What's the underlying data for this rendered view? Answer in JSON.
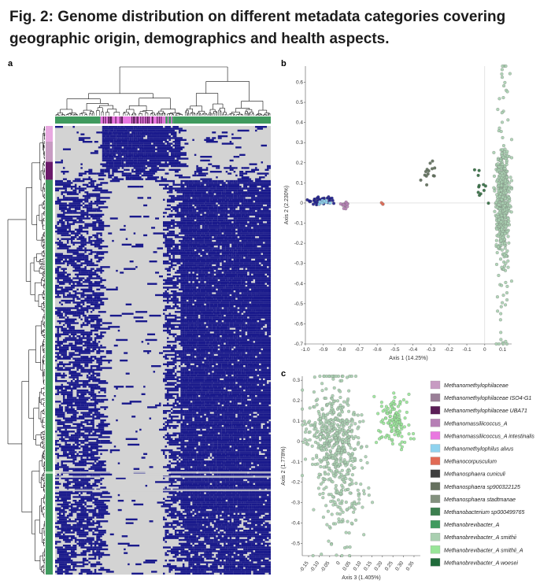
{
  "figure": {
    "title": "Fig. 2: Genome distribution on different metadata categories covering geographic origin, demographics and health aspects.",
    "panel_a": "a",
    "panel_b": "b",
    "panel_c": "c"
  },
  "colors": {
    "heat_present": "#1a1a8c",
    "heat_absent": "#d3d3d3"
  },
  "legend": [
    {
      "label": "Methanomethylophilaceae",
      "color": "#c79bc2"
    },
    {
      "label": "Methanomethylophilaceae ISO4-G1",
      "color": "#9a7f97"
    },
    {
      "label": "Methanomethylophilaceae UBA71",
      "color": "#5a1e56"
    },
    {
      "label": "Methanomassiliicoccus_A",
      "color": "#b67fb5"
    },
    {
      "label": "Methanomassiliicoccus_A intestinalis",
      "color": "#e978e0"
    },
    {
      "label": "Methanomethylophilus alvus",
      "color": "#8fd3ef"
    },
    {
      "label": "Methanocorpusculum",
      "color": "#e16a55"
    },
    {
      "label": "Methanosphaera cuniculi",
      "color": "#3f3f3f"
    },
    {
      "label": "Methanosphaera sp900322125",
      "color": "#66715f"
    },
    {
      "label": "Methanosphaera stadtmanae",
      "color": "#83917e"
    },
    {
      "label": "Methanobacterium sp000499765",
      "color": "#3c7f4f"
    },
    {
      "label": "Methanobrevibacter_A",
      "color": "#3f9a5e"
    },
    {
      "label": "Methanobrevibacter_A smithii",
      "color": "#a9cfb0"
    },
    {
      "label": "Methanobrevibacter_A smithii_A",
      "color": "#98e598"
    },
    {
      "label": "Methanobrevibacter_A woesei",
      "color": "#1f6b3a"
    }
  ],
  "chart_data": [
    {
      "type": "heatmap",
      "title": "",
      "row_color_bar": [
        "#e8a8e0",
        "#c79bc2",
        "#6b1a6b",
        "#3f9a5e"
      ],
      "column_color_bar": [
        "#3f9a5e",
        "#e978e0",
        "#5a1e56",
        "#3f9a5e"
      ]
    },
    {
      "type": "scatter",
      "xlabel": "Axis 1 (14.25%)",
      "ylabel": "Axis 2 (2.230%)",
      "xlim": [
        -1.0,
        0.15
      ],
      "ylim": [
        -0.7,
        0.68
      ],
      "xticks": [
        "-1.0",
        "-0.9",
        "-0.8",
        "-0.7",
        "-0.6",
        "-0.5",
        "-0.4",
        "-0.3",
        "-0.2",
        "-0.1",
        "0",
        "0.1"
      ],
      "yticks": [
        "0.6",
        "0.5",
        "0.4",
        "0.3",
        "0.2",
        "0.1",
        "0",
        "-0.1",
        "-0.2",
        "-0.3",
        "-0.4",
        "-0.5",
        "-0.6",
        "-0.7"
      ],
      "xtick_values": [
        -1.0,
        -0.9,
        -0.8,
        -0.7,
        -0.6,
        -0.5,
        -0.4,
        -0.3,
        -0.2,
        -0.1,
        0,
        0.1
      ],
      "ytick_values": [
        0.6,
        0.5,
        0.4,
        0.3,
        0.2,
        0.1,
        0,
        -0.1,
        -0.2,
        -0.3,
        -0.4,
        -0.5,
        -0.6,
        -0.7
      ],
      "clusters": [
        {
          "name": "Methanomethylophilaceae",
          "color": "#1a1a8c",
          "x": -0.92,
          "y": 0.01,
          "n": 40,
          "sx": 0.04,
          "sy": 0.01
        },
        {
          "name": "Methanomethylophilus alvus",
          "color": "#8fd3ef",
          "x": -0.9,
          "y": 0.005,
          "n": 12,
          "sx": 0.02,
          "sy": 0.006
        },
        {
          "name": "Methanomassiliicoccus_A",
          "color": "#b67fb5",
          "x": -0.78,
          "y": -0.01,
          "n": 14,
          "sx": 0.012,
          "sy": 0.01
        },
        {
          "name": "Methanocorpusculum",
          "color": "#e16a55",
          "x": -0.57,
          "y": 0.0,
          "n": 3,
          "sx": 0.003,
          "sy": 0.003
        },
        {
          "name": "Methanosphaera",
          "color": "#5b6b57",
          "x": -0.31,
          "y": 0.15,
          "n": 14,
          "sx": 0.025,
          "sy": 0.025
        },
        {
          "name": "Methanobacterium sp000499765",
          "color": "#2f6a3e",
          "x": -0.03,
          "y": 0.06,
          "n": 12,
          "sx": 0.025,
          "sy": 0.05
        },
        {
          "name": "Methanobrevibacter_A smithii",
          "color": "#a9cfb0",
          "x": 0.1,
          "y": 0.02,
          "n": 620,
          "sx": 0.018,
          "sy": 0.12
        }
      ]
    },
    {
      "type": "scatter",
      "xlabel": "Axis 3 (1.405%)",
      "ylabel": "Axis 2 (1.778%)",
      "xlim": [
        -0.18,
        0.38
      ],
      "ylim": [
        -0.56,
        0.32
      ],
      "xticks": [
        "-0.15",
        "-0.10",
        "-0.05",
        "0",
        "0.05",
        "0.10",
        "0.15",
        "0.20",
        "0.25",
        "0.30",
        "0.35"
      ],
      "yticks": [
        "0.3",
        "0.2",
        "0.1",
        "0",
        "-0.1",
        "-0.2",
        "-0.3",
        "-0.4",
        "-0.5"
      ],
      "xtick_values": [
        -0.15,
        -0.1,
        -0.05,
        0,
        0.05,
        0.1,
        0.15,
        0.2,
        0.25,
        0.3,
        0.35
      ],
      "ytick_values": [
        0.3,
        0.2,
        0.1,
        0,
        -0.1,
        -0.2,
        -0.3,
        -0.4,
        -0.5
      ],
      "clusters": [
        {
          "name": "Methanobrevibacter_A smithii",
          "color": "#a9cfb0",
          "x": -0.03,
          "y": 0.02,
          "n": 480,
          "sx": 0.06,
          "sy": 0.1
        },
        {
          "name": "Methanobrevibacter_A smithii",
          "color": "#a9cfb0",
          "x": 0.03,
          "y": -0.27,
          "n": 110,
          "sx": 0.05,
          "sy": 0.1
        },
        {
          "name": "Methanobrevibacter_A smithii_A",
          "color": "#98e598",
          "x": 0.26,
          "y": 0.1,
          "n": 130,
          "sx": 0.035,
          "sy": 0.06
        }
      ]
    }
  ]
}
